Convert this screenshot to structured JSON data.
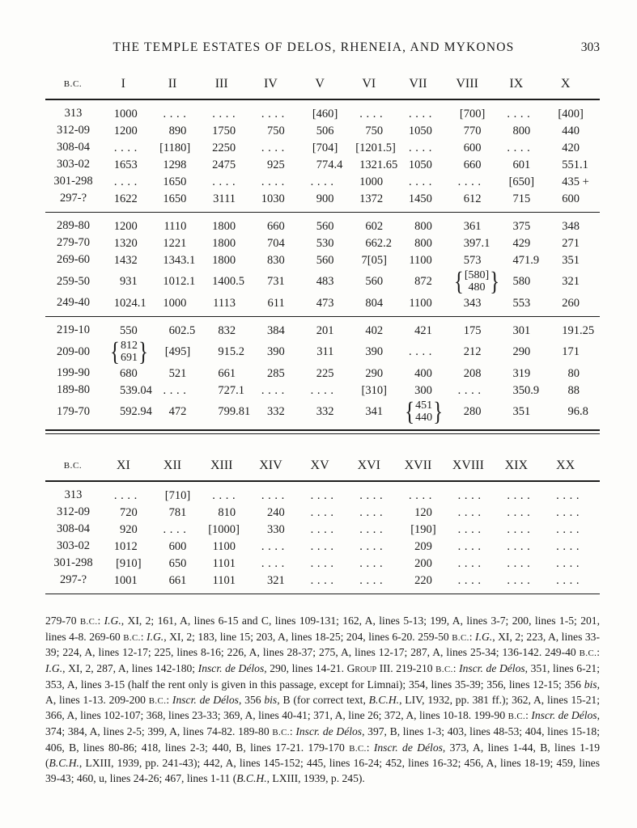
{
  "page": {
    "title": "THE TEMPLE ESTATES OF DELOS, RHENEIA, AND MYKONOS",
    "number": "303"
  },
  "table1": {
    "corner_label": "B.C.",
    "columns": [
      "I",
      "II",
      "III",
      "IV",
      "V",
      "VI",
      "VII",
      "VIII",
      "IX",
      "X"
    ],
    "groups": [
      {
        "rows": [
          {
            "year": "313",
            "cells": [
              "1000",
              "....",
              "....",
              "....",
              "[460]",
              "....",
              "....",
              "[700]",
              "....",
              "[400]"
            ]
          },
          {
            "year": "312-09",
            "cells": [
              "1200",
              "890",
              "1750",
              "750",
              "506",
              "750",
              "1050",
              "770",
              "800",
              "440"
            ]
          },
          {
            "year": "308-04",
            "cells": [
              "....",
              "[1180]",
              "2250",
              "....",
              "[704]",
              "[1201.5]",
              "....",
              "600",
              "....",
              "420"
            ]
          },
          {
            "year": "303-02",
            "cells": [
              "1653",
              "1298",
              "2475",
              "925",
              "774.4",
              "1321.65",
              "1050",
              "660",
              "601",
              "551.1"
            ]
          },
          {
            "year": "301-298",
            "cells": [
              "....",
              "1650",
              "....",
              "....",
              "....",
              "1000",
              "....",
              "....",
              "[650]",
              "435 +"
            ]
          },
          {
            "year": "297-?",
            "cells": [
              "1622",
              "1650",
              "3111",
              "1030",
              "900",
              "1372",
              "1450",
              "612",
              "715",
              "600"
            ]
          }
        ]
      },
      {
        "rows": [
          {
            "year": "289-80",
            "cells": [
              "1200",
              "1110",
              "1800",
              "660",
              "560",
              "602",
              "800",
              "361",
              "375",
              "348"
            ]
          },
          {
            "year": "279-70",
            "cells": [
              "1320",
              "1221",
              "1800",
              "704",
              "530",
              "662.2",
              "800",
              "397.1",
              "429",
              "271"
            ]
          },
          {
            "year": "269-60",
            "cells": [
              "1432",
              "1343.1",
              "1800",
              "830",
              "560",
              "7[05]",
              "1100",
              "573",
              "471.9",
              "351"
            ]
          },
          {
            "year": "259-50",
            "cells": [
              "931",
              "1012.1",
              "1400.5",
              "731",
              "483",
              "560",
              "872",
              {
                "brace": [
                  "[580]",
                  "480"
                ]
              },
              "580",
              "321"
            ]
          },
          {
            "year": "249-40",
            "cells": [
              "1024.1",
              "1000",
              "1113",
              "611",
              "473",
              "804",
              "1100",
              "343",
              "553",
              "260"
            ]
          }
        ]
      },
      {
        "rows": [
          {
            "year": "219-10",
            "cells": [
              "550",
              "602.5",
              "832",
              "384",
              "201",
              "402",
              "421",
              "175",
              "301",
              "191.25"
            ]
          },
          {
            "year": "209-00",
            "cells": [
              {
                "brace": [
                  "812",
                  "691"
                ]
              },
              "[495]",
              "915.2",
              "390",
              "311",
              "390",
              "....",
              "212",
              "290",
              "171"
            ]
          },
          {
            "year": "199-90",
            "cells": [
              "680",
              "521",
              "661",
              "285",
              "225",
              "290",
              "400",
              "208",
              "319",
              "80"
            ]
          },
          {
            "year": "189-80",
            "cells": [
              "539.04",
              "....",
              "727.1",
              "....",
              "....",
              "[310]",
              "300",
              "....",
              "350.9",
              "88"
            ]
          },
          {
            "year": "179-70",
            "cells": [
              "592.94",
              "472",
              "799.81",
              "332",
              "332",
              "341",
              {
                "brace": [
                  "451",
                  "440"
                ]
              },
              "280",
              "351",
              "96.8"
            ]
          }
        ]
      }
    ]
  },
  "table2": {
    "corner_label": "B.C.",
    "columns": [
      "XI",
      "XII",
      "XIII",
      "XIV",
      "XV",
      "XVI",
      "XVII",
      "XVIII",
      "XIX",
      "XX"
    ],
    "groups": [
      {
        "rows": [
          {
            "year": "313",
            "cells": [
              "....",
              "[710]",
              "....",
              "....",
              "....",
              "....",
              "....",
              "....",
              "....",
              "...."
            ]
          },
          {
            "year": "312-09",
            "cells": [
              "720",
              "781",
              "810",
              "240",
              "....",
              "....",
              "120",
              "....",
              "....",
              "...."
            ]
          },
          {
            "year": "308-04",
            "cells": [
              "920",
              "....",
              "[1000]",
              "330",
              "....",
              "....",
              "[190]",
              "....",
              "....",
              "...."
            ]
          },
          {
            "year": "303-02",
            "cells": [
              "1012",
              "600",
              "1100",
              "....",
              "....",
              "....",
              "209",
              "....",
              "....",
              "...."
            ]
          },
          {
            "year": "301-298",
            "cells": [
              "[910]",
              "650",
              "1101",
              "....",
              "....",
              "....",
              "200",
              "....",
              "....",
              "...."
            ]
          },
          {
            "year": "297-?",
            "cells": [
              "1001",
              "661",
              "1101",
              "321",
              "....",
              "....",
              "220",
              "....",
              "....",
              "...."
            ]
          }
        ]
      }
    ]
  },
  "footnote": {
    "segments": [
      {
        "t": "279-70 "
      },
      {
        "t": "B.C.",
        "s": "sc"
      },
      {
        "t": ": "
      },
      {
        "t": "I.G.",
        "s": "i"
      },
      {
        "t": ", XI, 2; 161, A, lines 6-15 and C, lines 109-131; 162, A, lines 5-13; 199, A, lines 3-7; 200, lines 1-5; 201, lines 4-8.  269-60 "
      },
      {
        "t": "B.C.",
        "s": "sc"
      },
      {
        "t": ": "
      },
      {
        "t": "I.G.",
        "s": "i"
      },
      {
        "t": ", XI, 2; 183, line 15; 203, A, lines 18-25; 204, lines 6-20.  259-50 "
      },
      {
        "t": "B.C.",
        "s": "sc"
      },
      {
        "t": ": "
      },
      {
        "t": "I.G.",
        "s": "i"
      },
      {
        "t": ", XI, 2; 223, A, lines 33-39; 224, A, lines 12-17; 225, lines 8-16; 226, A, lines 28-37; 275, A, lines 12-17; 287, A, lines 25-34; 136-142.  249-40 "
      },
      {
        "t": "B.C.",
        "s": "sc"
      },
      {
        "t": ": "
      },
      {
        "t": "I.G.",
        "s": "i"
      },
      {
        "t": ", XI, 2, 287, A, lines 142-180; "
      },
      {
        "t": "Inscr. de Délos",
        "s": "i"
      },
      {
        "t": ", 290, lines 14-21.  "
      },
      {
        "t": "Group",
        "s": "g"
      },
      {
        "t": " III.  219-210 "
      },
      {
        "t": "B.C.",
        "s": "sc"
      },
      {
        "t": ": "
      },
      {
        "t": "Inscr. de Délos",
        "s": "i"
      },
      {
        "t": ", 351, lines 6-21; 353, A, lines 3-15 (half the rent only is given in this passage, except for Limnai); 354, lines 35-39; 356, lines 12-15; 356 "
      },
      {
        "t": "bis",
        "s": "i"
      },
      {
        "t": ", A, lines 1-13.  209-200 "
      },
      {
        "t": "B.C.",
        "s": "sc"
      },
      {
        "t": ": "
      },
      {
        "t": "Inscr. de Délos",
        "s": "i"
      },
      {
        "t": ", 356 "
      },
      {
        "t": "bis",
        "s": "i"
      },
      {
        "t": ", B (for correct text, "
      },
      {
        "t": "B.C.H.",
        "s": "i"
      },
      {
        "t": ", LIV, 1932, pp. 381 ff.); 362, A, lines 15-21; 366, A, lines 102-107; 368, lines 23-33; 369, A, lines 40-41; 371, A, line 26; 372, A, lines 10-18.  199-90 "
      },
      {
        "t": "B.C.",
        "s": "sc"
      },
      {
        "t": ": "
      },
      {
        "t": "Inscr. de Délos",
        "s": "i"
      },
      {
        "t": ", 374; 384, A, lines 2-5; 399, A, lines 74-82.  189-80 "
      },
      {
        "t": "B.C.",
        "s": "sc"
      },
      {
        "t": ": "
      },
      {
        "t": "Inscr. de Délos",
        "s": "i"
      },
      {
        "t": ", 397, B, lines 1-3; 403, lines 48-53; 404, lines 15-18; 406, B, lines 80-86; 418, lines 2-3; 440, B, lines 17-21.  179-170 "
      },
      {
        "t": "B.C.",
        "s": "sc"
      },
      {
        "t": ": "
      },
      {
        "t": "Inscr. de Délos",
        "s": "i"
      },
      {
        "t": ", 373, A, lines 1-44, B, lines 1-19 ("
      },
      {
        "t": "B.C.H.",
        "s": "i"
      },
      {
        "t": ", LXIII, 1939, pp. 241-43); 442, A, lines 145-152; 445, lines 16-24; 452, lines 16-32; 456, A, lines 18-19; 459, lines 39-43; 460, u, lines 24-26; 467, lines 1-11 ("
      },
      {
        "t": "B.C.H.",
        "s": "i"
      },
      {
        "t": ", LXIII, 1939, p. 245)."
      }
    ]
  }
}
